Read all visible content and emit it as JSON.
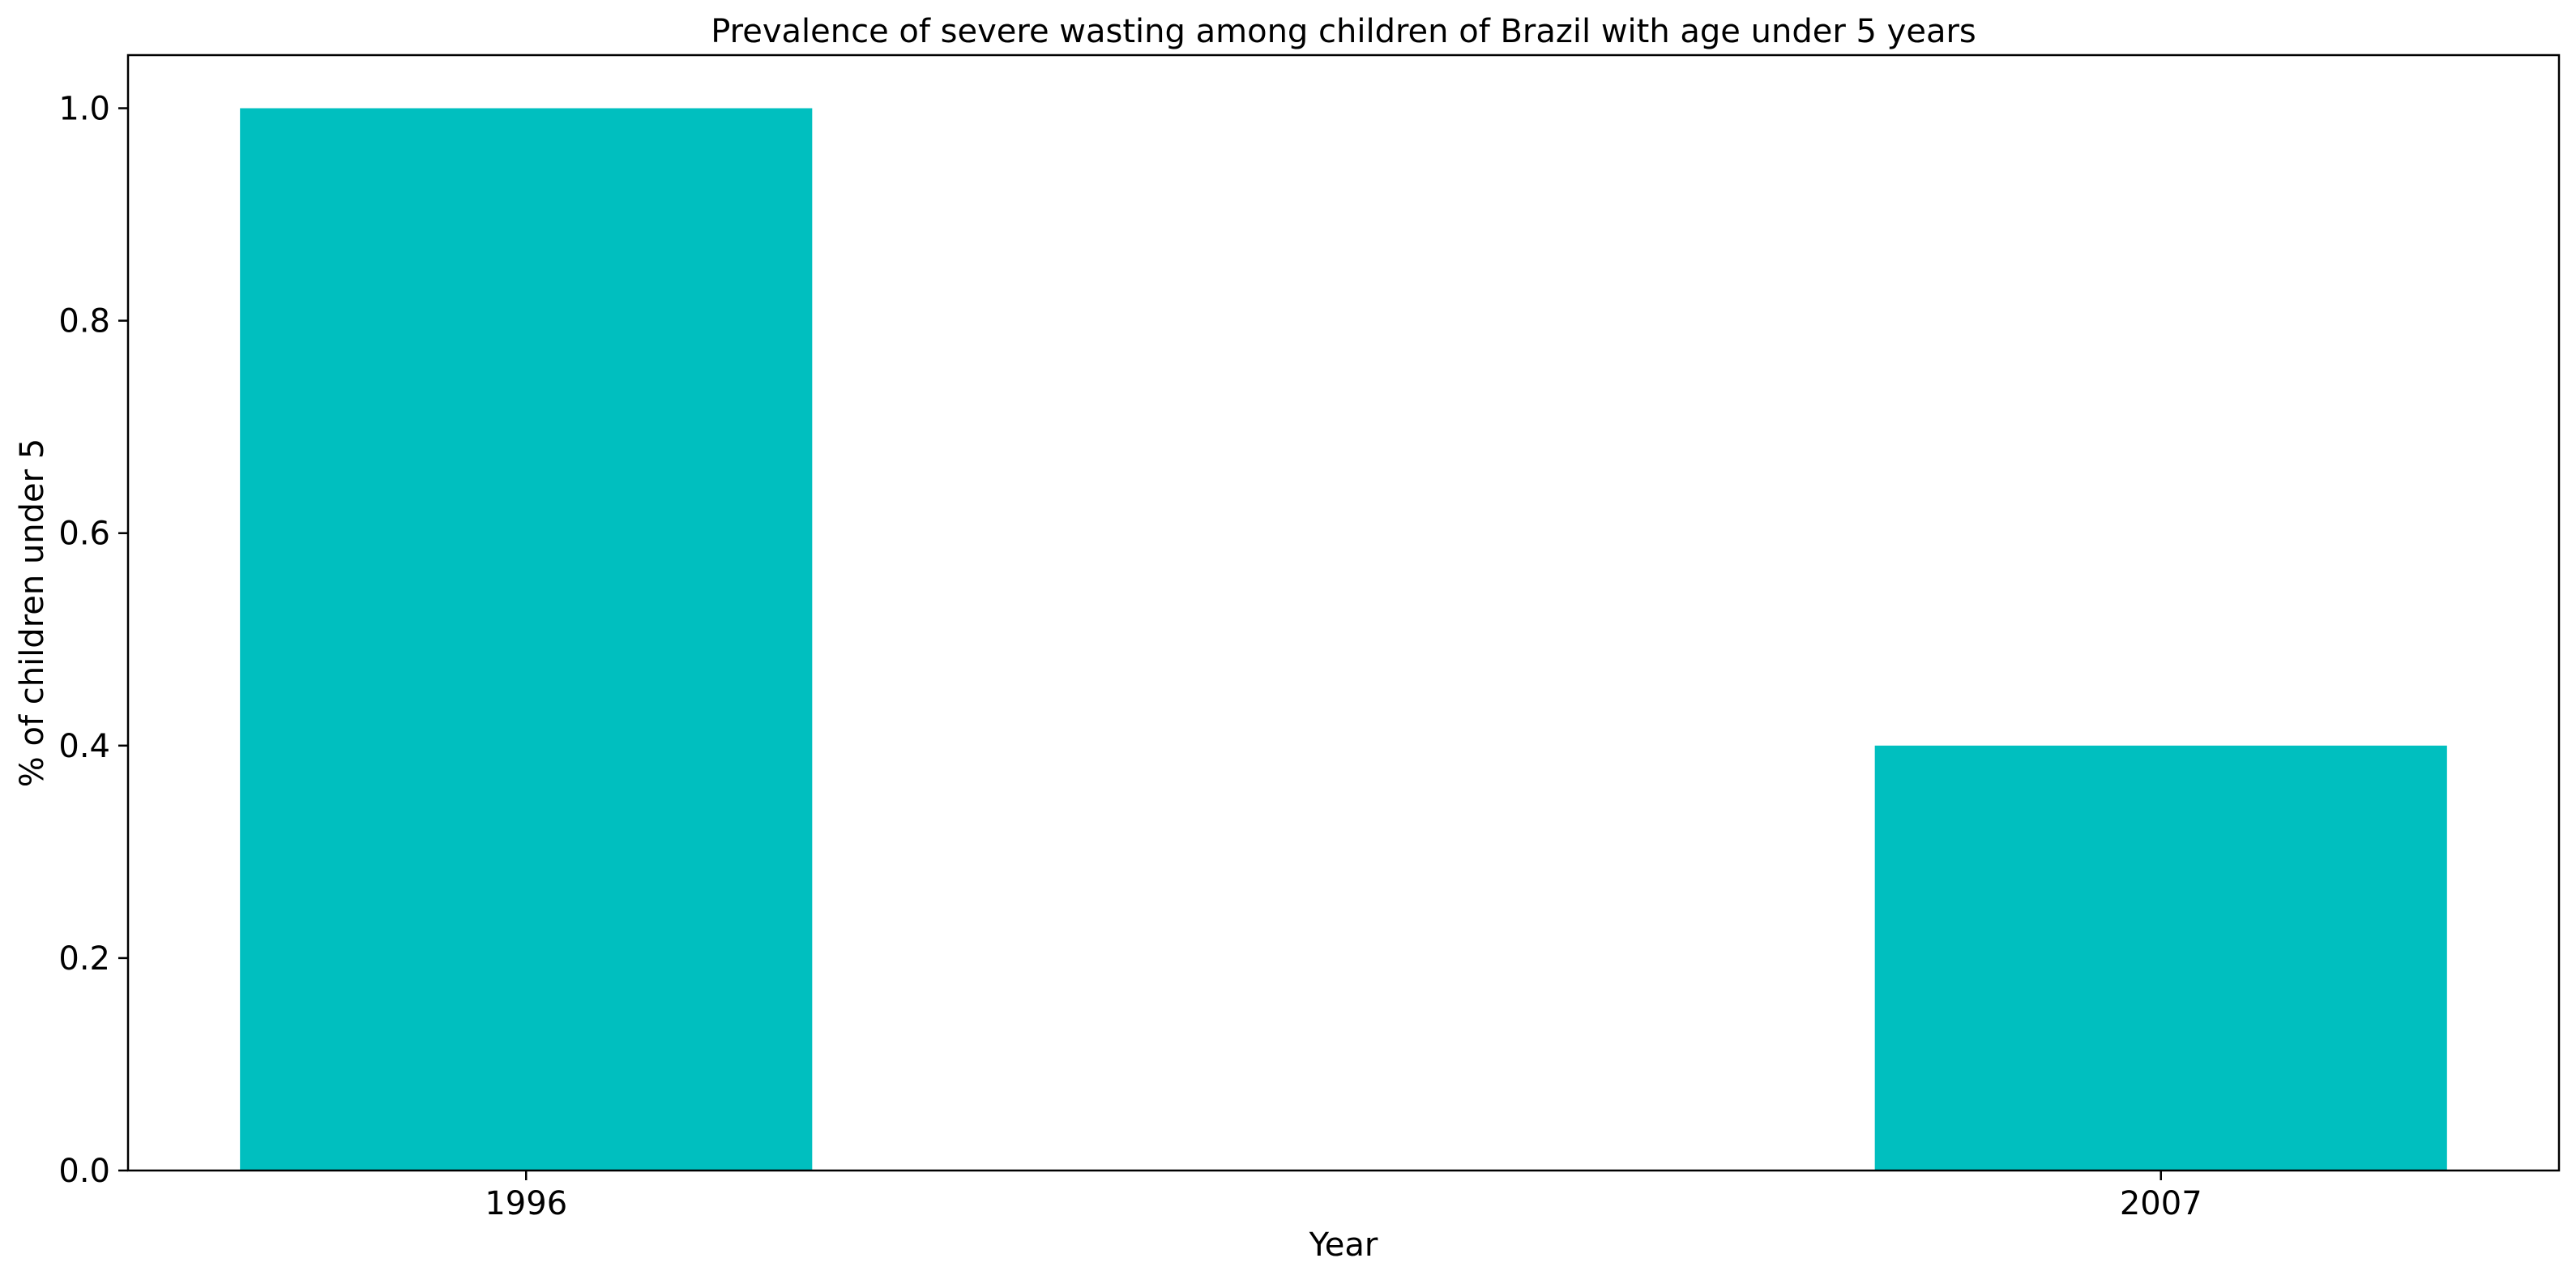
{
  "chart_data": {
    "type": "bar",
    "title": "Prevalence of severe wasting among children of Brazil with age under 5 years",
    "xlabel": "Year",
    "ylabel": "% of children under 5",
    "categories": [
      "1996",
      "2007"
    ],
    "values": [
      1.0,
      0.4
    ],
    "ylim": [
      0,
      1.05
    ],
    "yticks": [
      0.0,
      0.2,
      0.4,
      0.6,
      0.8,
      1.0
    ],
    "ytick_labels": [
      "0.0",
      "0.2",
      "0.4",
      "0.6",
      "0.8",
      "1.0"
    ],
    "bar_color": "#00bfbf",
    "grid": false,
    "legend": "none"
  }
}
